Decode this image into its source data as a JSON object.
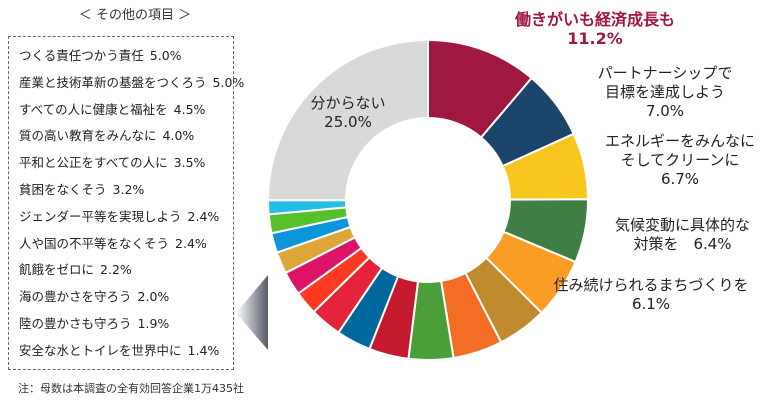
{
  "other_title": "＜ その他の項目 ＞",
  "footnote": "注：母数は本調査の全有効回答企業1万435社",
  "chart_data": {
    "type": "pie",
    "title": "",
    "slices": [
      {
        "label": "働きがいも経済成長も",
        "value": 11.2,
        "color": "#a0183f"
      },
      {
        "label": "パートナーシップで目標を達成しよう",
        "value": 7.0,
        "color": "#1b456a"
      },
      {
        "label": "エネルギーをみんなにそしてクリーンに",
        "value": 6.7,
        "color": "#f7c51e"
      },
      {
        "label": "気候変動に具体的な対策を",
        "value": 6.4,
        "color": "#3f7e44"
      },
      {
        "label": "住み続けられるまちづくりを",
        "value": 6.1,
        "color": "#f99d26"
      },
      {
        "label": "つくる責任つかう責任",
        "value": 5.0,
        "color": "#bf8b2e"
      },
      {
        "label": "産業と技術革新の基盤をつくろう",
        "value": 5.0,
        "color": "#f36d25"
      },
      {
        "label": "すべての人に健康と福祉を",
        "value": 4.5,
        "color": "#4c9f38"
      },
      {
        "label": "質の高い教育をみんなに",
        "value": 4.0,
        "color": "#c5192d"
      },
      {
        "label": "平和と公正をすべての人に",
        "value": 3.5,
        "color": "#00689d"
      },
      {
        "label": "貧困をなくそう",
        "value": 3.2,
        "color": "#e5243b"
      },
      {
        "label": "ジェンダー平等を実現しよう",
        "value": 2.4,
        "color": "#ff3a21"
      },
      {
        "label": "人や国の不平等をなくそう",
        "value": 2.4,
        "color": "#dd1367"
      },
      {
        "label": "飢餓をゼロに",
        "value": 2.2,
        "color": "#dda63a"
      },
      {
        "label": "海の豊かさを守ろう",
        "value": 2.0,
        "color": "#0a97d9"
      },
      {
        "label": "陸の豊かさも守ろう",
        "value": 1.9,
        "color": "#56c02b"
      },
      {
        "label": "安全な水とトイレを世界中に",
        "value": 1.4,
        "color": "#26bde2"
      },
      {
        "label": "分からない",
        "value": 25.0,
        "color": "#d9d9d9"
      }
    ]
  },
  "labels": {
    "work": {
      "line1": "働きがいも経済成長も",
      "line2": "11.2%"
    },
    "partner": {
      "line1": "パートナーシップで",
      "line2": "目標を達成しよう",
      "line3": "7.0%"
    },
    "energy": {
      "line1": "エネルギーをみんなに",
      "line2": "そしてクリーンに",
      "line3": "6.7%"
    },
    "climate": {
      "line1": "気候変動に具体的な",
      "line2": "対策を　6.4%"
    },
    "city": {
      "line1": "住み続けられるまちづくりを",
      "line2": "6.1%"
    },
    "unknown": {
      "line1": "分からない",
      "line2": "25.0%"
    }
  },
  "other_items": [
    {
      "label": "つくる責任つかう責任",
      "pct": "5.0%"
    },
    {
      "label": "産業と技術革新の基盤をつくろう",
      "pct": "5.0%"
    },
    {
      "label": "すべての人に健康と福祉を",
      "pct": "4.5%"
    },
    {
      "label": "質の高い教育をみんなに",
      "pct": "4.0%"
    },
    {
      "label": "平和と公正をすべての人に",
      "pct": "3.5%"
    },
    {
      "label": "貧困をなくそう",
      "pct": "3.2%"
    },
    {
      "label": "ジェンダー平等を実現しよう",
      "pct": "2.4%"
    },
    {
      "label": "人や国の不平等をなくそう",
      "pct": "2.4%"
    },
    {
      "label": "飢餓をゼロに",
      "pct": "2.2%"
    },
    {
      "label": "海の豊かさを守ろう",
      "pct": "2.0%"
    },
    {
      "label": "陸の豊かさも守ろう",
      "pct": "1.9%"
    },
    {
      "label": "安全な水とトイレを世界中に",
      "pct": "1.4%"
    }
  ]
}
